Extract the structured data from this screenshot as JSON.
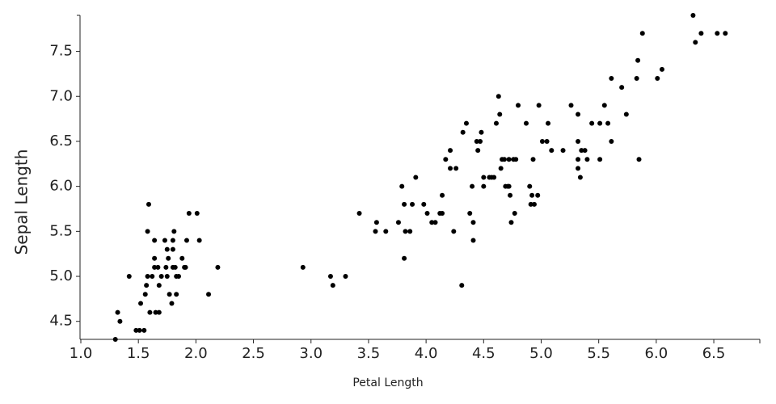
{
  "chart_data": {
    "type": "scatter",
    "x_label": "Petal Length",
    "y_label": "Sepal Length",
    "color": "#000000",
    "xlim": [
      1.0,
      6.9
    ],
    "ylim": [
      4.3,
      7.9
    ],
    "xticks": [
      {
        "value": 1.0,
        "label": "1.0"
      },
      1.5,
      {
        "value": 2.0,
        "label": "2.0"
      },
      2.5,
      {
        "value": 3.0,
        "label": "3.0"
      },
      3.5,
      {
        "value": 4.0,
        "label": "4.0"
      },
      4.5,
      {
        "value": 5.0,
        "label": "5.0"
      },
      5.5,
      {
        "value": 6.0,
        "label": "6.0"
      },
      6.5
    ],
    "yticks": [
      4.5,
      {
        "value": 5.0,
        "label": "5.0"
      },
      5.5,
      {
        "value": 6.0,
        "label": "6.0"
      },
      6.5,
      {
        "value": 7.0,
        "label": "7.0"
      },
      7.5
    ],
    "grid": false,
    "x": [
      1.3,
      1.32,
      1.34,
      1.42,
      1.48,
      1.51,
      1.55,
      1.52,
      1.56,
      1.57,
      1.58,
      1.58,
      1.59,
      1.6,
      1.62,
      1.64,
      1.64,
      1.64,
      1.65,
      1.68,
      1.68,
      1.67,
      1.7,
      1.73,
      1.74,
      1.75,
      1.75,
      1.76,
      1.77,
      1.79,
      1.8,
      1.8,
      1.8,
      1.81,
      1.82,
      1.83,
      1.83,
      1.85,
      1.88,
      1.9,
      1.91,
      1.92,
      1.94,
      2.01,
      2.03,
      2.11,
      2.19,
      2.93,
      3.17,
      3.19,
      3.3,
      3.42,
      3.56,
      3.57,
      3.65,
      3.76,
      3.79,
      3.81,
      3.81,
      3.82,
      3.86,
      3.88,
      3.91,
      3.98,
      4.01,
      4.05,
      4.08,
      4.12,
      4.14,
      4.14,
      4.17,
      4.21,
      4.21,
      4.24,
      4.26,
      4.31,
      4.32,
      4.35,
      4.38,
      4.4,
      4.41,
      4.41,
      4.44,
      4.45,
      4.48,
      4.47,
      4.5,
      4.5,
      4.55,
      4.57,
      4.59,
      4.61,
      4.63,
      4.64,
      4.66,
      4.65,
      4.68,
      4.69,
      4.71,
      4.72,
      4.72,
      4.73,
      4.74,
      4.76,
      4.77,
      4.78,
      4.8,
      4.87,
      4.9,
      4.91,
      4.93,
      4.92,
      4.94,
      4.97,
      4.98,
      5.01,
      5.06,
      5.05,
      5.09,
      5.19,
      5.26,
      5.32,
      5.32,
      5.32,
      5.32,
      5.34,
      5.35,
      5.38,
      5.4,
      5.44,
      5.51,
      5.51,
      5.55,
      5.58,
      5.61,
      5.61,
      5.7,
      5.74,
      5.83,
      5.84,
      5.85,
      5.88,
      6.01,
      6.05,
      6.32,
      6.34,
      6.39,
      6.53,
      6.6
    ],
    "y": [
      4.3,
      4.6,
      4.5,
      5.0,
      4.4,
      4.4,
      4.4,
      4.7,
      4.8,
      4.9,
      5.0,
      5.5,
      5.8,
      4.6,
      5.0,
      5.2,
      5.1,
      5.4,
      4.6,
      4.6,
      4.9,
      5.1,
      5.0,
      5.4,
      5.1,
      5.0,
      5.3,
      5.2,
      4.8,
      4.7,
      5.1,
      5.4,
      5.3,
      5.5,
      5.1,
      5.0,
      4.8,
      5.0,
      5.2,
      5.1,
      5.1,
      5.4,
      5.7,
      5.7,
      5.4,
      4.8,
      5.1,
      5.1,
      5.0,
      4.9,
      5.0,
      5.7,
      5.5,
      5.6,
      5.5,
      5.6,
      6.0,
      5.8,
      5.2,
      5.5,
      5.5,
      5.8,
      6.1,
      5.8,
      5.7,
      5.6,
      5.6,
      5.7,
      5.7,
      5.9,
      6.3,
      6.4,
      6.2,
      5.5,
      6.2,
      4.9,
      6.6,
      6.7,
      5.7,
      6.0,
      5.6,
      5.4,
      6.5,
      6.4,
      6.6,
      6.5,
      6.0,
      6.1,
      6.1,
      6.1,
      6.1,
      6.7,
      7.0,
      6.8,
      6.3,
      6.2,
      6.3,
      6.0,
      6.0,
      6.3,
      6.0,
      5.9,
      5.6,
      6.3,
      5.7,
      6.3,
      6.9,
      6.7,
      6.0,
      5.8,
      6.3,
      5.9,
      5.8,
      5.9,
      6.9,
      6.5,
      6.7,
      6.5,
      6.4,
      6.4,
      6.9,
      6.3,
      6.8,
      6.5,
      6.2,
      6.1,
      6.4,
      6.4,
      6.3,
      6.7,
      6.3,
      6.7,
      6.9,
      6.7,
      6.5,
      7.2,
      7.1,
      6.8,
      7.2,
      7.4,
      6.3,
      7.7,
      7.2,
      7.3,
      7.9,
      7.6,
      7.7,
      7.7,
      7.7
    ]
  }
}
